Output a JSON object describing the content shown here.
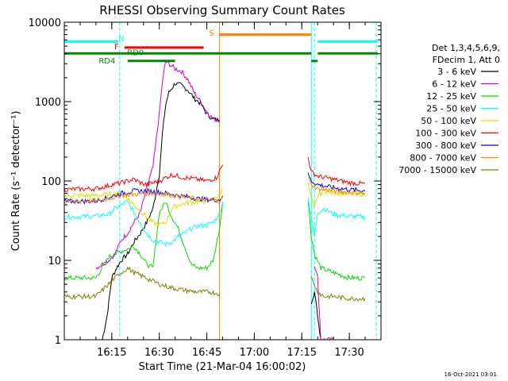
{
  "chart_data": {
    "type": "line",
    "title": "RHESSI Observing Summary Count Rates",
    "xlabel": "Start Time (21-Mar-04 16:00:02)",
    "ylabel": "Count Rate (s⁻¹ detector⁻¹)",
    "y_scale": "log",
    "ylim": [
      1,
      10000
    ],
    "xlim_minutes": [
      0,
      100
    ],
    "x_ticks": [
      {
        "m": 15,
        "label": "16:15"
      },
      {
        "m": 30,
        "label": "16:30"
      },
      {
        "m": 45,
        "label": "16:45"
      },
      {
        "m": 60,
        "label": "17:00"
      },
      {
        "m": 75,
        "label": "17:15"
      },
      {
        "m": 90,
        "label": "17:30"
      }
    ],
    "y_ticks": [
      {
        "v": 1,
        "label": "1"
      },
      {
        "v": 10,
        "label": "10"
      },
      {
        "v": 100,
        "label": "100"
      },
      {
        "v": 1000,
        "label": "1000"
      },
      {
        "v": 10000,
        "label": "10000"
      }
    ],
    "legend_title": [
      "Det 1,3,4,5,6,9,",
      "FDecim 1, Att 0"
    ],
    "series": [
      {
        "name": "3 - 6 keV",
        "color": "#000000",
        "segments": [
          [
            [
              12,
              1
            ],
            [
              13.5,
              2
            ],
            [
              15,
              6
            ],
            [
              16.5,
              8
            ],
            [
              18,
              10
            ],
            [
              20,
              12
            ],
            [
              22,
              17
            ],
            [
              24,
              22
            ],
            [
              26,
              30
            ],
            [
              28,
              45
            ],
            [
              30,
              120
            ],
            [
              31,
              400
            ],
            [
              32,
              900
            ],
            [
              33,
              1300
            ],
            [
              35,
              1700
            ],
            [
              37,
              1600
            ],
            [
              39,
              1400
            ],
            [
              41,
              1100
            ],
            [
              43,
              950
            ],
            [
              45,
              700
            ],
            [
              47,
              600
            ],
            [
              49,
              580
            ]
          ],
          [
            [
              78,
              3
            ],
            [
              79,
              4
            ],
            [
              80,
              2
            ],
            [
              81,
              1
            ]
          ]
        ]
      },
      {
        "name": "6 - 12 keV",
        "color": "#cc00cc",
        "segments": [
          [
            [
              10,
              8
            ],
            [
              14,
              10
            ],
            [
              16,
              12
            ],
            [
              18,
              18
            ],
            [
              20,
              22
            ],
            [
              22,
              30
            ],
            [
              24,
              40
            ],
            [
              26,
              80
            ],
            [
              28,
              150
            ],
            [
              30,
              700
            ],
            [
              31,
              1800
            ],
            [
              32,
              3200
            ],
            [
              33,
              3000
            ],
            [
              35,
              2600
            ],
            [
              37,
              2400
            ],
            [
              39,
              1900
            ],
            [
              41,
              1300
            ],
            [
              43,
              1000
            ],
            [
              45,
              750
            ],
            [
              47,
              600
            ],
            [
              49,
              590
            ]
          ],
          [
            [
              79,
              9
            ],
            [
              80,
              6
            ],
            [
              81,
              1
            ],
            [
              83,
              1
            ],
            [
              85,
              1
            ]
          ]
        ]
      },
      {
        "name": "12 - 25 keV",
        "color": "#00dd00",
        "segments": [
          [
            [
              0,
              6
            ],
            [
              10,
              6
            ],
            [
              14,
              11
            ],
            [
              18,
              13
            ],
            [
              22,
              15
            ],
            [
              24,
              12
            ],
            [
              26,
              9
            ],
            [
              28,
              8
            ],
            [
              30,
              40
            ],
            [
              32,
              55
            ],
            [
              34,
              35
            ],
            [
              36,
              25
            ],
            [
              38,
              15
            ],
            [
              40,
              9
            ],
            [
              42,
              8
            ],
            [
              45,
              8
            ],
            [
              47,
              10
            ],
            [
              49,
              25
            ],
            [
              50,
              55
            ]
          ],
          [
            [
              77,
              55
            ],
            [
              78,
              20
            ],
            [
              79,
              12
            ],
            [
              81,
              8
            ],
            [
              85,
              7
            ],
            [
              90,
              6
            ],
            [
              95,
              6
            ]
          ]
        ]
      },
      {
        "name": "25 - 50 keV",
        "color": "#00ffff",
        "segments": [
          [
            [
              0,
              35
            ],
            [
              10,
              36
            ],
            [
              14,
              38
            ],
            [
              16,
              45
            ],
            [
              18,
              50
            ],
            [
              20,
              55
            ],
            [
              22,
              40
            ],
            [
              24,
              30
            ],
            [
              26,
              22
            ],
            [
              28,
              18
            ],
            [
              30,
              17
            ],
            [
              32,
              16
            ],
            [
              34,
              17
            ],
            [
              36,
              20
            ],
            [
              38,
              22
            ],
            [
              40,
              25
            ],
            [
              42,
              27
            ],
            [
              45,
              28
            ],
            [
              47,
              30
            ],
            [
              49,
              38
            ],
            [
              50,
              55
            ]
          ],
          [
            [
              77,
              60
            ],
            [
              78,
              35
            ],
            [
              79,
              20
            ],
            [
              80,
              40
            ],
            [
              82,
              45
            ],
            [
              85,
              38
            ],
            [
              90,
              36
            ],
            [
              95,
              35
            ]
          ]
        ]
      },
      {
        "name": "50 - 100 keV",
        "color": "#dddd00",
        "segments": [
          [
            [
              0,
              65
            ],
            [
              10,
              66
            ],
            [
              15,
              68
            ],
            [
              18,
              70
            ],
            [
              20,
              60
            ],
            [
              22,
              50
            ],
            [
              24,
              42
            ],
            [
              26,
              35
            ],
            [
              28,
              30
            ],
            [
              30,
              28
            ],
            [
              32,
              30
            ],
            [
              34,
              45
            ],
            [
              36,
              50
            ],
            [
              38,
              52
            ],
            [
              40,
              54
            ],
            [
              45,
              56
            ],
            [
              48,
              60
            ],
            [
              50,
              80
            ]
          ],
          [
            [
              77,
              90
            ],
            [
              78,
              60
            ],
            [
              79,
              45
            ],
            [
              80,
              65
            ],
            [
              82,
              75
            ],
            [
              85,
              72
            ],
            [
              90,
              70
            ],
            [
              95,
              68
            ]
          ]
        ]
      },
      {
        "name": "100 - 300 keV",
        "color": "#ff0000",
        "segments": [
          [
            [
              0,
              78
            ],
            [
              10,
              80
            ],
            [
              13,
              85
            ],
            [
              15,
              90
            ],
            [
              18,
              95
            ],
            [
              20,
              100
            ],
            [
              22,
              105
            ],
            [
              24,
              95
            ],
            [
              26,
              90
            ],
            [
              28,
              95
            ],
            [
              30,
              100
            ],
            [
              32,
              110
            ],
            [
              34,
              120
            ],
            [
              36,
              115
            ],
            [
              38,
              110
            ],
            [
              40,
              108
            ],
            [
              45,
              100
            ],
            [
              48,
              110
            ],
            [
              50,
              160
            ]
          ],
          [
            [
              77,
              200
            ],
            [
              78,
              130
            ],
            [
              80,
              115
            ],
            [
              85,
              105
            ],
            [
              90,
              95
            ],
            [
              95,
              92
            ]
          ]
        ]
      },
      {
        "name": "300 - 800 keV",
        "color": "#0000ff",
        "segments": [
          [
            [
              0,
              55
            ],
            [
              10,
              56
            ],
            [
              14,
              62
            ],
            [
              18,
              70
            ],
            [
              22,
              75
            ],
            [
              26,
              75
            ],
            [
              30,
              72
            ],
            [
              34,
              68
            ],
            [
              38,
              64
            ],
            [
              42,
              60
            ],
            [
              46,
              58
            ],
            [
              49,
              58
            ],
            [
              50,
              65
            ]
          ],
          [
            [
              77,
              120
            ],
            [
              78,
              100
            ],
            [
              80,
              90
            ],
            [
              85,
              82
            ],
            [
              90,
              78
            ],
            [
              95,
              75
            ]
          ]
        ]
      },
      {
        "name": "800 - 7000 keV",
        "color": "#ff8800",
        "segments": [
          [
            [
              0,
              55
            ],
            [
              10,
              56
            ],
            [
              14,
              60
            ],
            [
              18,
              66
            ],
            [
              22,
              68
            ],
            [
              26,
              70
            ],
            [
              30,
              70
            ],
            [
              34,
              66
            ],
            [
              38,
              62
            ],
            [
              42,
              60
            ],
            [
              46,
              57
            ],
            [
              49,
              56
            ],
            [
              50,
              60
            ]
          ],
          [
            [
              77,
              110
            ],
            [
              78,
              90
            ],
            [
              80,
              80
            ],
            [
              85,
              75
            ],
            [
              90,
              72
            ],
            [
              95,
              70
            ]
          ]
        ]
      },
      {
        "name": "7000 - 15000 keV",
        "color": "#808000",
        "segments": [
          [
            [
              0,
              3.5
            ],
            [
              10,
              3.5
            ],
            [
              14,
              5
            ],
            [
              16,
              6
            ],
            [
              18,
              7
            ],
            [
              20,
              8
            ],
            [
              22,
              7
            ],
            [
              26,
              6
            ],
            [
              30,
              5
            ],
            [
              34,
              4.5
            ],
            [
              38,
              4.2
            ],
            [
              42,
              4
            ],
            [
              46,
              4
            ],
            [
              49,
              3.8
            ]
          ],
          [
            [
              78,
              6
            ],
            [
              80,
              4
            ],
            [
              82,
              3.5
            ],
            [
              85,
              3.5
            ],
            [
              90,
              3.3
            ],
            [
              95,
              3.3
            ]
          ]
        ]
      }
    ],
    "status_bars": [
      {
        "label": "N",
        "color": "#00ffff",
        "label_color": "#00ffff",
        "y": 5700,
        "label_at": [
          18,
          6300
        ],
        "segments": [
          [
            0,
            17
          ],
          [
            80,
            99
          ]
        ]
      },
      {
        "label": "F",
        "color": "#ff0000",
        "label_color": "#ff0000",
        "y": 4800,
        "label_at": [
          16.5,
          5000
        ],
        "segments": [
          [
            19,
            44
          ]
        ]
      },
      {
        "label": "S",
        "color": "#ff8800",
        "label_color": "#ff8800",
        "y": 7000,
        "label_at": [
          46.5,
          7400
        ],
        "segments": [
          [
            49,
            78
          ]
        ]
      },
      {
        "label": "RD0",
        "color": "#008800",
        "label_color": "#008800",
        "y": 4050,
        "label_at": [
          22.5,
          4200
        ],
        "segments": [
          [
            0,
            78
          ],
          [
            80,
            99
          ]
        ]
      },
      {
        "label": "RD4",
        "color": "#008800",
        "label_color": "#008800",
        "y": 3250,
        "label_at": [
          13.5,
          3300
        ],
        "segments": [
          [
            20,
            35
          ],
          [
            78,
            80
          ]
        ]
      }
    ],
    "vertical_lines": [
      {
        "m": 0,
        "color": "#00ffff",
        "style": "dashed"
      },
      {
        "m": 17.5,
        "color": "#00ffff",
        "style": "dashed"
      },
      {
        "m": 49,
        "color": "#ff8800",
        "style": "solid"
      },
      {
        "m": 78,
        "color": "#00ffff",
        "style": "solid"
      },
      {
        "m": 79,
        "color": "#00ffff",
        "style": "dashed"
      },
      {
        "m": 98.5,
        "color": "#00ffff",
        "style": "dashed"
      }
    ],
    "timestamp": "16-Oct-2021 03:01"
  }
}
